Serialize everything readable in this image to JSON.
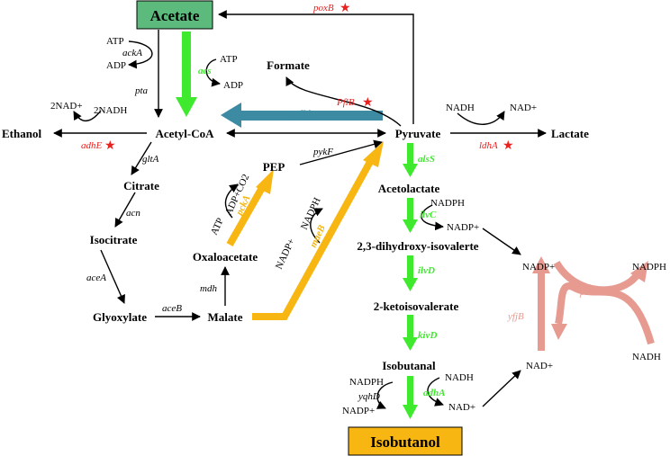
{
  "boxes": {
    "acetate": "Acetate",
    "isobutanol": "Isobutanol"
  },
  "metabolites": {
    "formate": "Formate",
    "ethanol": "Ethanol",
    "acetyl_coa": "Acetyl-CoA",
    "pyruvate": "Pyruvate",
    "lactate": "Lactate",
    "pep": "PEP",
    "citrate": "Citrate",
    "isocitrate": "Isocitrate",
    "oxaloacetate": "Oxaloacetate",
    "glyoxylate": "Glyoxylate",
    "malate": "Malate",
    "acetolactate": "Acetolactate",
    "dihydroxy": "2,3-dihydroxy-isovalerte",
    "ketoisovalerate": "2-ketoisovalerate",
    "isobutanal": "Isobutanal"
  },
  "cofactors": {
    "atp_ack": "ATP",
    "adp_ack": "ADP",
    "atp_acs": "ATP",
    "adp_acs": "ADP",
    "nad_adh": "2NAD+",
    "nadh_adh": "2NADH",
    "nadh_ldh": "NADH",
    "nad_ldh": "NAD+",
    "adp_co2": "ADP+CO2",
    "atp_pck": "ATP",
    "nadp_mae": "NADP+",
    "nadph_mae": "NADPH",
    "nadph_ilvc": "NADPH",
    "nadp_ilvc": "NADP+",
    "nadp_right": "NADP+",
    "nadph_right": "NADPH",
    "nad_right": "NAD+",
    "nadh_right": "NADH",
    "nadph_yqhd": "NADPH",
    "nadp_yqhd": "NADP+",
    "nadh_adha": "NADH",
    "nad_adha": "NAD+"
  },
  "enzymes": {
    "poxB": "poxB",
    "ackA": "ackA",
    "acs": "acs",
    "pta": "pta",
    "pflB": "PflB",
    "ydbk": "ydbk",
    "adhE": "adhE",
    "ldhA": "ldhA",
    "gltA": "gltA",
    "pykF": "pykF",
    "alsS": "alsS",
    "acn": "acn",
    "pckA": "pckA",
    "maeB": "maeB",
    "ilvC": "ilvC",
    "aceA": "aceA",
    "mdh": "mdh",
    "ilvD": "ilvD",
    "aceB": "aceB",
    "pntAB": "pntAB",
    "yfjB": "yfjB",
    "kivD": "kivD",
    "yqhD": "yqhD",
    "adhA": "adhA"
  },
  "star": "★",
  "colors": {
    "acetate_box": "#5cba7d",
    "isobutanol_box": "#f7b612",
    "green": "#3fea2e",
    "orange": "#f7b612",
    "teal": "#3d8ba2",
    "pink": "#e69a90",
    "red": "#e8201e"
  }
}
